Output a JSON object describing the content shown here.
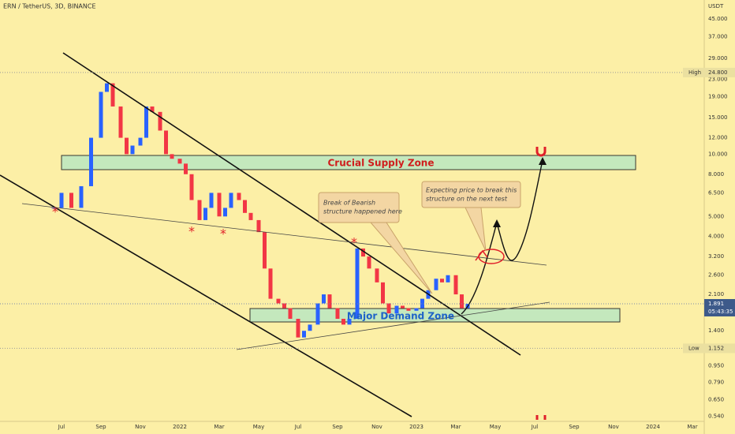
{
  "header": {
    "title": "ERN / TetherUS, 3D, BINANCE",
    "currency": "USDT"
  },
  "chart_data": {
    "type": "candlestick",
    "log_scale": true,
    "up_color": "#2962ff",
    "down_color": "#f23645",
    "x": [
      5.6,
      6,
      6.5,
      7,
      7.5,
      8,
      8.3,
      8.6,
      9,
      9.3,
      9.6,
      10,
      10.3,
      10.6,
      11,
      11.3,
      11.6,
      12,
      12.3,
      12.6,
      13,
      13.3,
      13.6,
      14,
      14.3,
      14.6,
      15,
      15.3,
      15.6,
      16,
      16.3,
      16.6,
      17,
      17.3,
      17.6,
      18,
      18.3,
      18.6,
      19,
      19.3,
      19.6,
      20,
      20.3,
      20.6,
      21,
      21.3,
      21.6,
      22,
      22.3,
      22.6,
      23,
      23.3,
      23.6,
      24,
      24.3,
      24.6,
      25,
      25.3,
      25.6,
      26,
      26.3,
      26.6
    ],
    "values": [
      5.5,
      6.5,
      5.5,
      7,
      12,
      20,
      22,
      17,
      12,
      10,
      11,
      12,
      17,
      16,
      13,
      10,
      9.5,
      9,
      8,
      6,
      4.8,
      5.5,
      6.5,
      5,
      5.5,
      6.5,
      6,
      5.2,
      4.8,
      4.2,
      2.8,
      2,
      1.9,
      1.8,
      1.6,
      1.3,
      1.4,
      1.5,
      1.9,
      2.1,
      1.8,
      1.6,
      1.5,
      1.6,
      3.5,
      3.2,
      2.8,
      2.4,
      1.9,
      1.7,
      1.85,
      1.8,
      1.75,
      1.8,
      2,
      2.2,
      2.5,
      2.4,
      2.6,
      2.1,
      1.8,
      1.891
    ],
    "xlim": [
      2.88,
      38.6
    ],
    "xticks": [
      {
        "value": 6,
        "label": "Jul"
      },
      {
        "value": 8,
        "label": "Sep"
      },
      {
        "value": 10,
        "label": "Nov"
      },
      {
        "value": 12,
        "label": "2022"
      },
      {
        "value": 14,
        "label": "Mar"
      },
      {
        "value": 16,
        "label": "May"
      },
      {
        "value": 18,
        "label": "Jul"
      },
      {
        "value": 20,
        "label": "Sep"
      },
      {
        "value": 22,
        "label": "Nov"
      },
      {
        "value": 24,
        "label": "2023"
      },
      {
        "value": 26,
        "label": "Mar"
      },
      {
        "value": 28,
        "label": "May"
      },
      {
        "value": 30,
        "label": "Jul"
      },
      {
        "value": 32,
        "label": "Sep"
      },
      {
        "value": 34,
        "label": "Nov"
      },
      {
        "value": 36,
        "label": "2024"
      },
      {
        "value": 38,
        "label": "Mar"
      }
    ],
    "ylim": [
      0.52,
      55.6
    ],
    "yticks": [
      {
        "value": 45,
        "label": "45.000"
      },
      {
        "value": 37,
        "label": "37.000"
      },
      {
        "value": 29,
        "label": "29.000"
      },
      {
        "value": 23,
        "label": "23.000"
      },
      {
        "value": 19,
        "label": "19.000"
      },
      {
        "value": 15,
        "label": "15.000"
      },
      {
        "value": 12,
        "label": "12.000"
      },
      {
        "value": 10,
        "label": "10.000"
      },
      {
        "value": 8,
        "label": "8.000"
      },
      {
        "value": 6.5,
        "label": "6.500"
      },
      {
        "value": 5,
        "label": "5.000"
      },
      {
        "value": 4,
        "label": "4.000"
      },
      {
        "value": 3.2,
        "label": "3.200"
      },
      {
        "value": 2.6,
        "label": "2.600"
      },
      {
        "value": 2.1,
        "label": "2.100"
      },
      {
        "value": 1.4,
        "label": "1.400"
      },
      {
        "value": 0.95,
        "label": "0.950"
      },
      {
        "value": 0.79,
        "label": "0.790"
      },
      {
        "value": 0.65,
        "label": "0.650"
      },
      {
        "value": 0.54,
        "label": "0.540"
      }
    ],
    "markers": {
      "high": {
        "tag": "High",
        "price": {
          "value": 24.8,
          "label": "24.800"
        }
      },
      "last": {
        "price": 1.891,
        "countdown": "05:43:35"
      },
      "low": {
        "tag": "Low",
        "price": {
          "value": 1.152,
          "label": "1.152"
        }
      }
    }
  },
  "annotations": {
    "supply_zone": "Crucial Supply Zone",
    "demand_zone": "Major Demand Zone",
    "break_note": [
      "Break of Bearish",
      "structure happened here"
    ],
    "expect_note": [
      "Expecting price to break this",
      "structure on the next test"
    ]
  }
}
